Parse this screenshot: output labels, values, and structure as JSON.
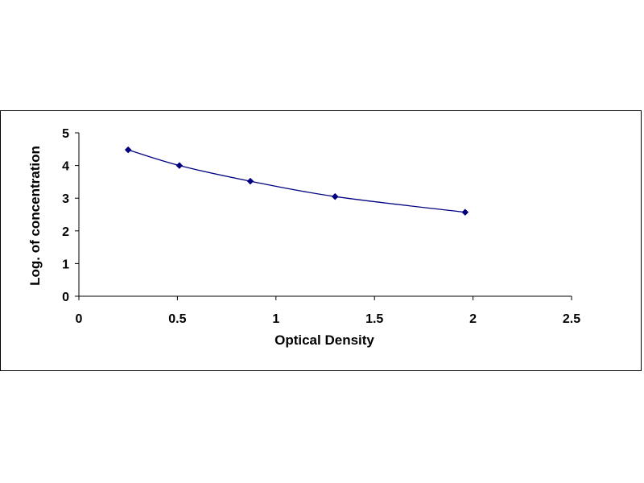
{
  "chart_data": {
    "type": "scatter",
    "title": "",
    "xlabel": "Optical Density",
    "ylabel": "Log. of concentration",
    "xlim": [
      0,
      2.5
    ],
    "ylim": [
      0,
      5
    ],
    "xticks": [
      0,
      0.5,
      1,
      1.5,
      2,
      2.5
    ],
    "xtick_labels": [
      "0",
      "0.5",
      "1",
      "1.5",
      "2",
      "2.5"
    ],
    "yticks": [
      0,
      1,
      2,
      3,
      4,
      5
    ],
    "ytick_labels": [
      "0",
      "1",
      "2",
      "3",
      "4",
      "5"
    ],
    "grid": false,
    "legend": false,
    "series": [
      {
        "x": [
          0.25,
          0.51,
          0.87,
          1.3,
          1.96
        ],
        "y": [
          4.48,
          4.0,
          3.52,
          3.05,
          2.57
        ],
        "marker": "diamond",
        "trendline": "smooth",
        "color": "#000080"
      }
    ]
  }
}
